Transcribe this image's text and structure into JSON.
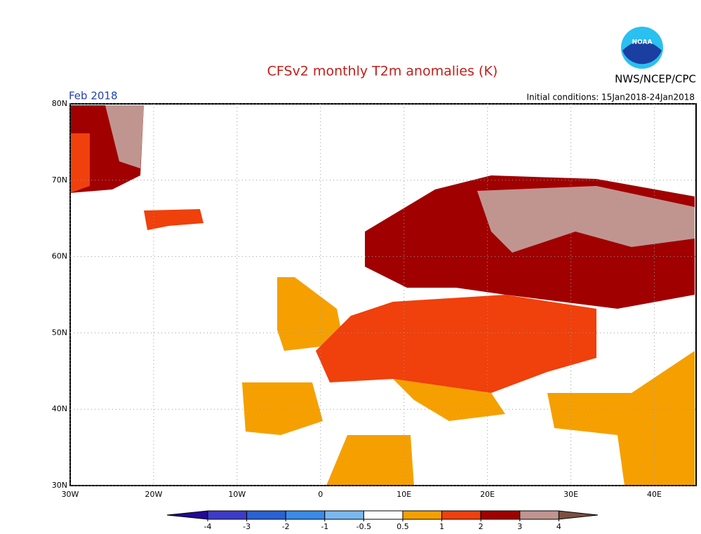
{
  "title": "CFSv2 monthly T2m anomalies (K)",
  "month": "Feb 2018",
  "initial_conditions": "Initial conditions: 15Jan2018-24Jan2018",
  "agency": "NWS/NCEP/CPC",
  "logo": "NOAA",
  "map": {
    "xlim": [
      -30,
      45
    ],
    "ylim": [
      30,
      80
    ],
    "xticks": [
      {
        "value": -30,
        "label": "30W"
      },
      {
        "value": -20,
        "label": "20W"
      },
      {
        "value": -10,
        "label": "10W"
      },
      0,
      {
        "value": 10,
        "label": "10E"
      },
      {
        "value": 20,
        "label": "20E"
      },
      {
        "value": 30,
        "label": "30E"
      },
      {
        "value": 40,
        "label": "40E"
      }
    ],
    "yticks": [
      {
        "value": 30,
        "label": "30N"
      },
      {
        "value": 40,
        "label": "40N"
      },
      {
        "value": 50,
        "label": "50N"
      },
      {
        "value": 60,
        "label": "60N"
      },
      {
        "value": 70,
        "label": "70N"
      },
      {
        "value": 80,
        "label": "80N"
      }
    ]
  },
  "colorbar": {
    "ticks": [
      -4,
      -3,
      -2,
      -1,
      -0.5,
      0.5,
      1,
      2,
      3,
      4
    ],
    "colors": [
      "#240a96",
      "#3c3cc8",
      "#2a62d2",
      "#3a8ae8",
      "#7ab8f0",
      "#ffffff",
      "#f5a000",
      "#f0400c",
      "#a00000",
      "#c09590",
      "#7a5040"
    ]
  }
}
